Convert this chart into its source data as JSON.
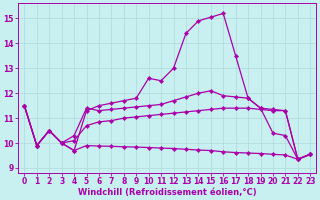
{
  "xlabel": "Windchill (Refroidissement éolien,°C)",
  "background_color": "#c8f0f0",
  "grid_color": "#b0d8d8",
  "line_color": "#aa00aa",
  "xlim": [
    -0.5,
    23.5
  ],
  "ylim": [
    8.8,
    15.6
  ],
  "yticks": [
    9,
    10,
    11,
    12,
    13,
    14,
    15
  ],
  "xticks": [
    0,
    1,
    2,
    3,
    4,
    5,
    6,
    7,
    8,
    9,
    10,
    11,
    12,
    13,
    14,
    15,
    16,
    17,
    18,
    19,
    20,
    21,
    22,
    23
  ],
  "series": [
    {
      "x": [
        0,
        1,
        2,
        3,
        4,
        5,
        6,
        7,
        8,
        9,
        10,
        11,
        12,
        13,
        14,
        15,
        16,
        17,
        18,
        19,
        20,
        21,
        22,
        23
      ],
      "y": [
        11.5,
        9.9,
        10.5,
        10.0,
        9.7,
        11.3,
        11.5,
        11.6,
        11.7,
        11.8,
        12.6,
        12.5,
        13.0,
        14.4,
        14.9,
        15.05,
        15.2,
        13.5,
        11.8,
        11.4,
        10.4,
        10.3,
        9.35,
        9.55
      ]
    },
    {
      "x": [
        0,
        1,
        2,
        3,
        4,
        5,
        6,
        7,
        8,
        9,
        10,
        11,
        12,
        13,
        14,
        15,
        16,
        17,
        18,
        19,
        20,
        21,
        22,
        23
      ],
      "y": [
        11.5,
        9.9,
        10.5,
        10.0,
        10.3,
        11.4,
        11.3,
        11.35,
        11.4,
        11.45,
        11.5,
        11.55,
        11.7,
        11.85,
        12.0,
        12.1,
        11.9,
        11.85,
        11.8,
        11.4,
        11.35,
        11.3,
        9.35,
        9.55
      ]
    },
    {
      "x": [
        0,
        1,
        2,
        3,
        4,
        5,
        6,
        7,
        8,
        9,
        10,
        11,
        12,
        13,
        14,
        15,
        16,
        17,
        18,
        19,
        20,
        21,
        22,
        23
      ],
      "y": [
        11.5,
        9.9,
        10.5,
        10.0,
        10.1,
        10.7,
        10.85,
        10.9,
        11.0,
        11.05,
        11.1,
        11.15,
        11.2,
        11.25,
        11.3,
        11.35,
        11.4,
        11.4,
        11.4,
        11.35,
        11.3,
        11.3,
        9.35,
        9.55
      ]
    },
    {
      "x": [
        0,
        1,
        2,
        3,
        4,
        5,
        6,
        7,
        8,
        9,
        10,
        11,
        12,
        13,
        14,
        15,
        16,
        17,
        18,
        19,
        20,
        21,
        22,
        23
      ],
      "y": [
        11.5,
        9.9,
        10.5,
        10.0,
        9.7,
        9.9,
        9.88,
        9.87,
        9.85,
        9.84,
        9.82,
        9.8,
        9.78,
        9.75,
        9.72,
        9.7,
        9.65,
        9.62,
        9.6,
        9.58,
        9.55,
        9.52,
        9.35,
        9.55
      ]
    }
  ]
}
